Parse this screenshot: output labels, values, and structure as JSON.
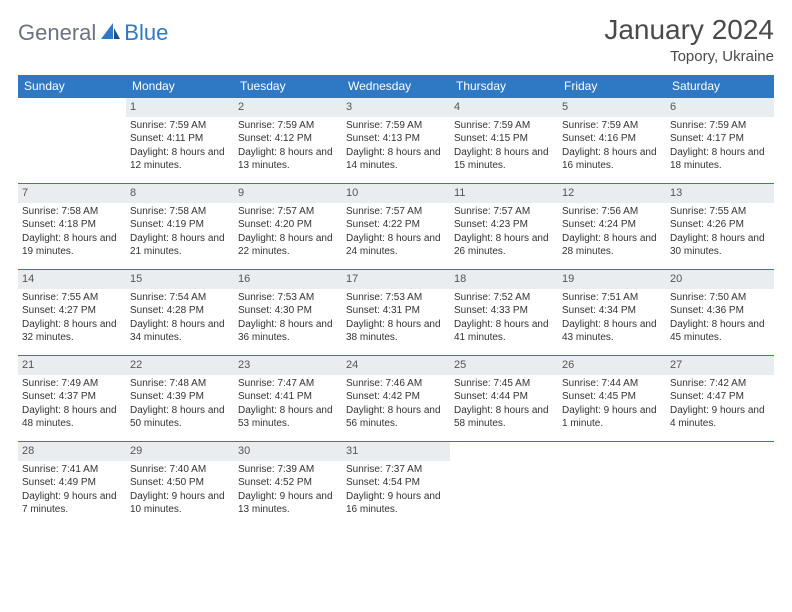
{
  "logo": {
    "text1": "General",
    "text2": "Blue"
  },
  "title": "January 2024",
  "subtitle": "Topory, Ukraine",
  "colors": {
    "header_bg": "#2f78c4",
    "header_text": "#ffffff",
    "daynum_bg": "#e9edf0",
    "border": "#2f78c4"
  },
  "day_names": [
    "Sunday",
    "Monday",
    "Tuesday",
    "Wednesday",
    "Thursday",
    "Friday",
    "Saturday"
  ],
  "weeks": [
    [
      null,
      {
        "n": "1",
        "sr": "Sunrise: 7:59 AM",
        "ss": "Sunset: 4:11 PM",
        "dl": "Daylight: 8 hours and 12 minutes."
      },
      {
        "n": "2",
        "sr": "Sunrise: 7:59 AM",
        "ss": "Sunset: 4:12 PM",
        "dl": "Daylight: 8 hours and 13 minutes."
      },
      {
        "n": "3",
        "sr": "Sunrise: 7:59 AM",
        "ss": "Sunset: 4:13 PM",
        "dl": "Daylight: 8 hours and 14 minutes."
      },
      {
        "n": "4",
        "sr": "Sunrise: 7:59 AM",
        "ss": "Sunset: 4:15 PM",
        "dl": "Daylight: 8 hours and 15 minutes."
      },
      {
        "n": "5",
        "sr": "Sunrise: 7:59 AM",
        "ss": "Sunset: 4:16 PM",
        "dl": "Daylight: 8 hours and 16 minutes."
      },
      {
        "n": "6",
        "sr": "Sunrise: 7:59 AM",
        "ss": "Sunset: 4:17 PM",
        "dl": "Daylight: 8 hours and 18 minutes."
      }
    ],
    [
      {
        "n": "7",
        "sr": "Sunrise: 7:58 AM",
        "ss": "Sunset: 4:18 PM",
        "dl": "Daylight: 8 hours and 19 minutes."
      },
      {
        "n": "8",
        "sr": "Sunrise: 7:58 AM",
        "ss": "Sunset: 4:19 PM",
        "dl": "Daylight: 8 hours and 21 minutes."
      },
      {
        "n": "9",
        "sr": "Sunrise: 7:57 AM",
        "ss": "Sunset: 4:20 PM",
        "dl": "Daylight: 8 hours and 22 minutes."
      },
      {
        "n": "10",
        "sr": "Sunrise: 7:57 AM",
        "ss": "Sunset: 4:22 PM",
        "dl": "Daylight: 8 hours and 24 minutes."
      },
      {
        "n": "11",
        "sr": "Sunrise: 7:57 AM",
        "ss": "Sunset: 4:23 PM",
        "dl": "Daylight: 8 hours and 26 minutes."
      },
      {
        "n": "12",
        "sr": "Sunrise: 7:56 AM",
        "ss": "Sunset: 4:24 PM",
        "dl": "Daylight: 8 hours and 28 minutes."
      },
      {
        "n": "13",
        "sr": "Sunrise: 7:55 AM",
        "ss": "Sunset: 4:26 PM",
        "dl": "Daylight: 8 hours and 30 minutes."
      }
    ],
    [
      {
        "n": "14",
        "sr": "Sunrise: 7:55 AM",
        "ss": "Sunset: 4:27 PM",
        "dl": "Daylight: 8 hours and 32 minutes."
      },
      {
        "n": "15",
        "sr": "Sunrise: 7:54 AM",
        "ss": "Sunset: 4:28 PM",
        "dl": "Daylight: 8 hours and 34 minutes."
      },
      {
        "n": "16",
        "sr": "Sunrise: 7:53 AM",
        "ss": "Sunset: 4:30 PM",
        "dl": "Daylight: 8 hours and 36 minutes."
      },
      {
        "n": "17",
        "sr": "Sunrise: 7:53 AM",
        "ss": "Sunset: 4:31 PM",
        "dl": "Daylight: 8 hours and 38 minutes."
      },
      {
        "n": "18",
        "sr": "Sunrise: 7:52 AM",
        "ss": "Sunset: 4:33 PM",
        "dl": "Daylight: 8 hours and 41 minutes."
      },
      {
        "n": "19",
        "sr": "Sunrise: 7:51 AM",
        "ss": "Sunset: 4:34 PM",
        "dl": "Daylight: 8 hours and 43 minutes."
      },
      {
        "n": "20",
        "sr": "Sunrise: 7:50 AM",
        "ss": "Sunset: 4:36 PM",
        "dl": "Daylight: 8 hours and 45 minutes."
      }
    ],
    [
      {
        "n": "21",
        "sr": "Sunrise: 7:49 AM",
        "ss": "Sunset: 4:37 PM",
        "dl": "Daylight: 8 hours and 48 minutes."
      },
      {
        "n": "22",
        "sr": "Sunrise: 7:48 AM",
        "ss": "Sunset: 4:39 PM",
        "dl": "Daylight: 8 hours and 50 minutes."
      },
      {
        "n": "23",
        "sr": "Sunrise: 7:47 AM",
        "ss": "Sunset: 4:41 PM",
        "dl": "Daylight: 8 hours and 53 minutes."
      },
      {
        "n": "24",
        "sr": "Sunrise: 7:46 AM",
        "ss": "Sunset: 4:42 PM",
        "dl": "Daylight: 8 hours and 56 minutes."
      },
      {
        "n": "25",
        "sr": "Sunrise: 7:45 AM",
        "ss": "Sunset: 4:44 PM",
        "dl": "Daylight: 8 hours and 58 minutes."
      },
      {
        "n": "26",
        "sr": "Sunrise: 7:44 AM",
        "ss": "Sunset: 4:45 PM",
        "dl": "Daylight: 9 hours and 1 minute."
      },
      {
        "n": "27",
        "sr": "Sunrise: 7:42 AM",
        "ss": "Sunset: 4:47 PM",
        "dl": "Daylight: 9 hours and 4 minutes."
      }
    ],
    [
      {
        "n": "28",
        "sr": "Sunrise: 7:41 AM",
        "ss": "Sunset: 4:49 PM",
        "dl": "Daylight: 9 hours and 7 minutes."
      },
      {
        "n": "29",
        "sr": "Sunrise: 7:40 AM",
        "ss": "Sunset: 4:50 PM",
        "dl": "Daylight: 9 hours and 10 minutes."
      },
      {
        "n": "30",
        "sr": "Sunrise: 7:39 AM",
        "ss": "Sunset: 4:52 PM",
        "dl": "Daylight: 9 hours and 13 minutes."
      },
      {
        "n": "31",
        "sr": "Sunrise: 7:37 AM",
        "ss": "Sunset: 4:54 PM",
        "dl": "Daylight: 9 hours and 16 minutes."
      },
      null,
      null,
      null
    ]
  ]
}
